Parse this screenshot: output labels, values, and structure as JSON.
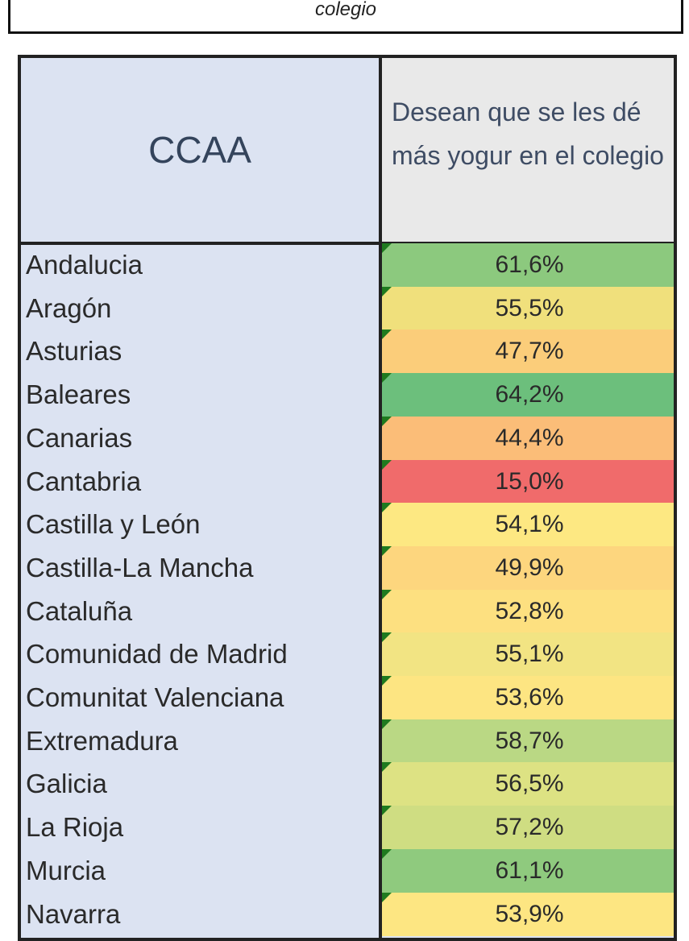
{
  "caption": "colegio",
  "table": {
    "header": [
      "CCAA",
      "Desean que se les dé más yogur en el colegio"
    ],
    "rows": [
      [
        "Andalucia",
        "61,6%"
      ],
      [
        "Aragón",
        "55,5%"
      ],
      [
        "Asturias",
        "47,7%"
      ],
      [
        "Baleares",
        "64,2%"
      ],
      [
        "Canarias",
        "44,4%"
      ],
      [
        "Cantabria",
        "15,0%"
      ],
      [
        "Castilla y León",
        "54,1%"
      ],
      [
        "Castilla-La Mancha",
        "49,9%"
      ],
      [
        "Cataluña",
        "52,8%"
      ],
      [
        "Comunidad de Madrid",
        "55,1%"
      ],
      [
        "Comunitat Valenciana",
        "53,6%"
      ],
      [
        "Extremadura",
        "58,7%"
      ],
      [
        "Galicia",
        "56,5%"
      ],
      [
        "La Rioja",
        "57,2%"
      ],
      [
        "Murcia",
        "61,1%"
      ],
      [
        "Navarra",
        "53,9%"
      ]
    ],
    "row_colors": [
      "#8cc97e",
      "#f0e07c",
      "#fbcd7a",
      "#6cbf7c",
      "#fbbd78",
      "#f06b6b",
      "#fde882",
      "#fdd67e",
      "#fde080",
      "#f2e483",
      "#fde582",
      "#bad884",
      "#dde283",
      "#cfdd82",
      "#8fca7e",
      "#fde682"
    ]
  }
}
